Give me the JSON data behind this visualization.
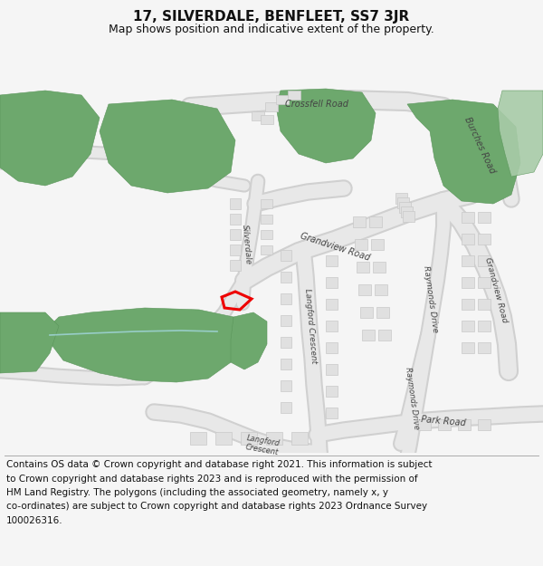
{
  "title": "17, SILVERDALE, BENFLEET, SS7 3JR",
  "subtitle": "Map shows position and indicative extent of the property.",
  "footer_lines": [
    "Contains OS data © Crown copyright and database right 2021. This information is subject",
    "to Crown copyright and database rights 2023 and is reproduced with the permission of",
    "HM Land Registry. The polygons (including the associated geometry, namely x, y",
    "co-ordinates) are subject to Crown copyright and database rights 2023 Ordnance Survey",
    "100026316."
  ],
  "bg_color": "#f5f5f5",
  "map_bg": "#ffffff",
  "road_fill": "#e8e8e8",
  "road_edge": "#d0d0d0",
  "building_fill": "#e0e0e0",
  "building_edge": "#c8c8c8",
  "green_fill": "#6da86d",
  "green_edge": "#5a955a",
  "light_green_fill": "#a8cba8",
  "red_color": "#ee0000",
  "water_color": "#aaddee",
  "title_fontsize": 11,
  "subtitle_fontsize": 9,
  "footer_fontsize": 7.5,
  "road_label_size": 7,
  "road_label_color": "#444444"
}
